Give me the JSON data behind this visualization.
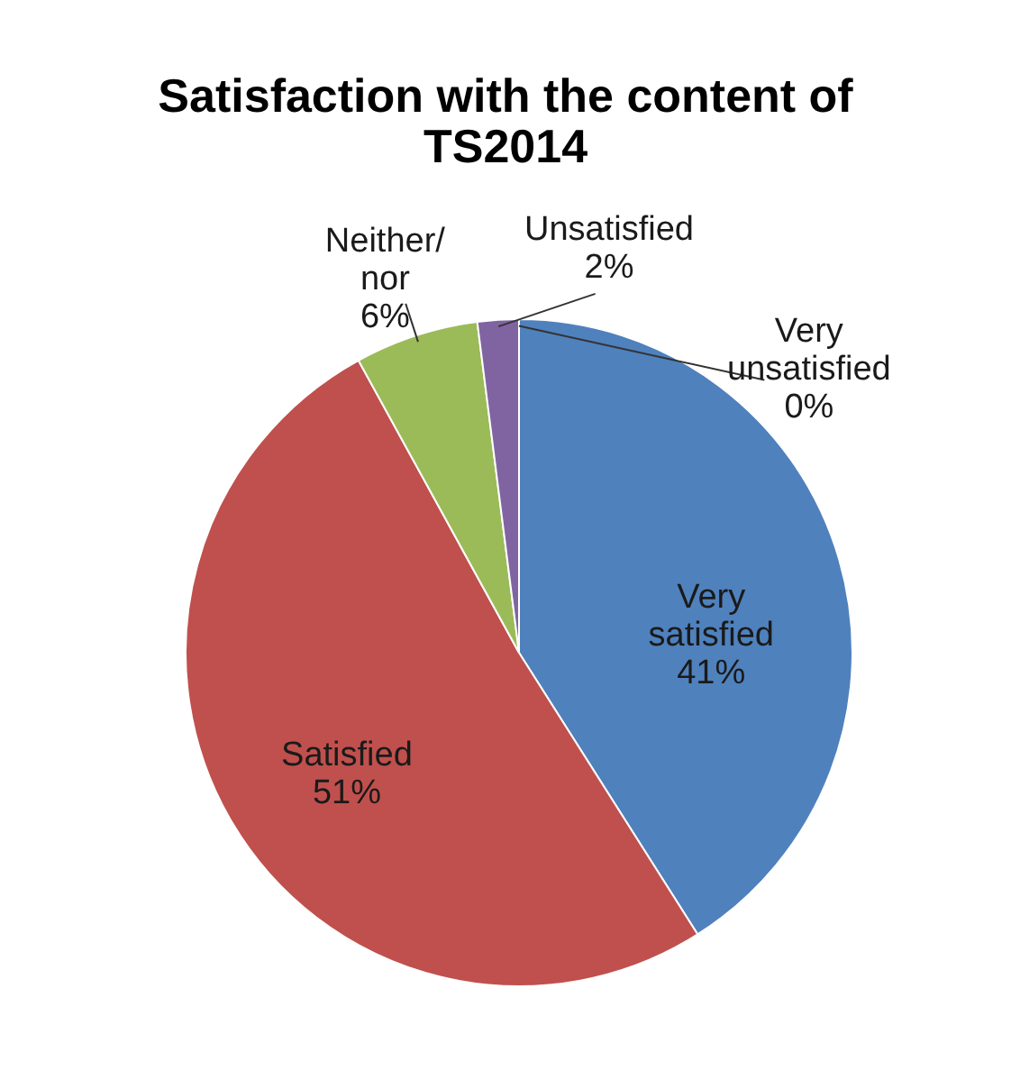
{
  "chart_data": {
    "type": "pie",
    "title": "Satisfaction with the content of TS2014",
    "categories": [
      "Very satisfied",
      "Satisfied",
      "Neither/ nor",
      "Unsatisfied",
      "Very unsatisfied"
    ],
    "values": [
      41,
      51,
      6,
      2,
      0
    ],
    "value_labels": [
      "41%",
      "51%",
      "6%",
      "2%",
      "0%"
    ],
    "colors": [
      "#4f81bd",
      "#c0504d",
      "#9bbb59",
      "#8064a2",
      "#4bacc6"
    ]
  }
}
